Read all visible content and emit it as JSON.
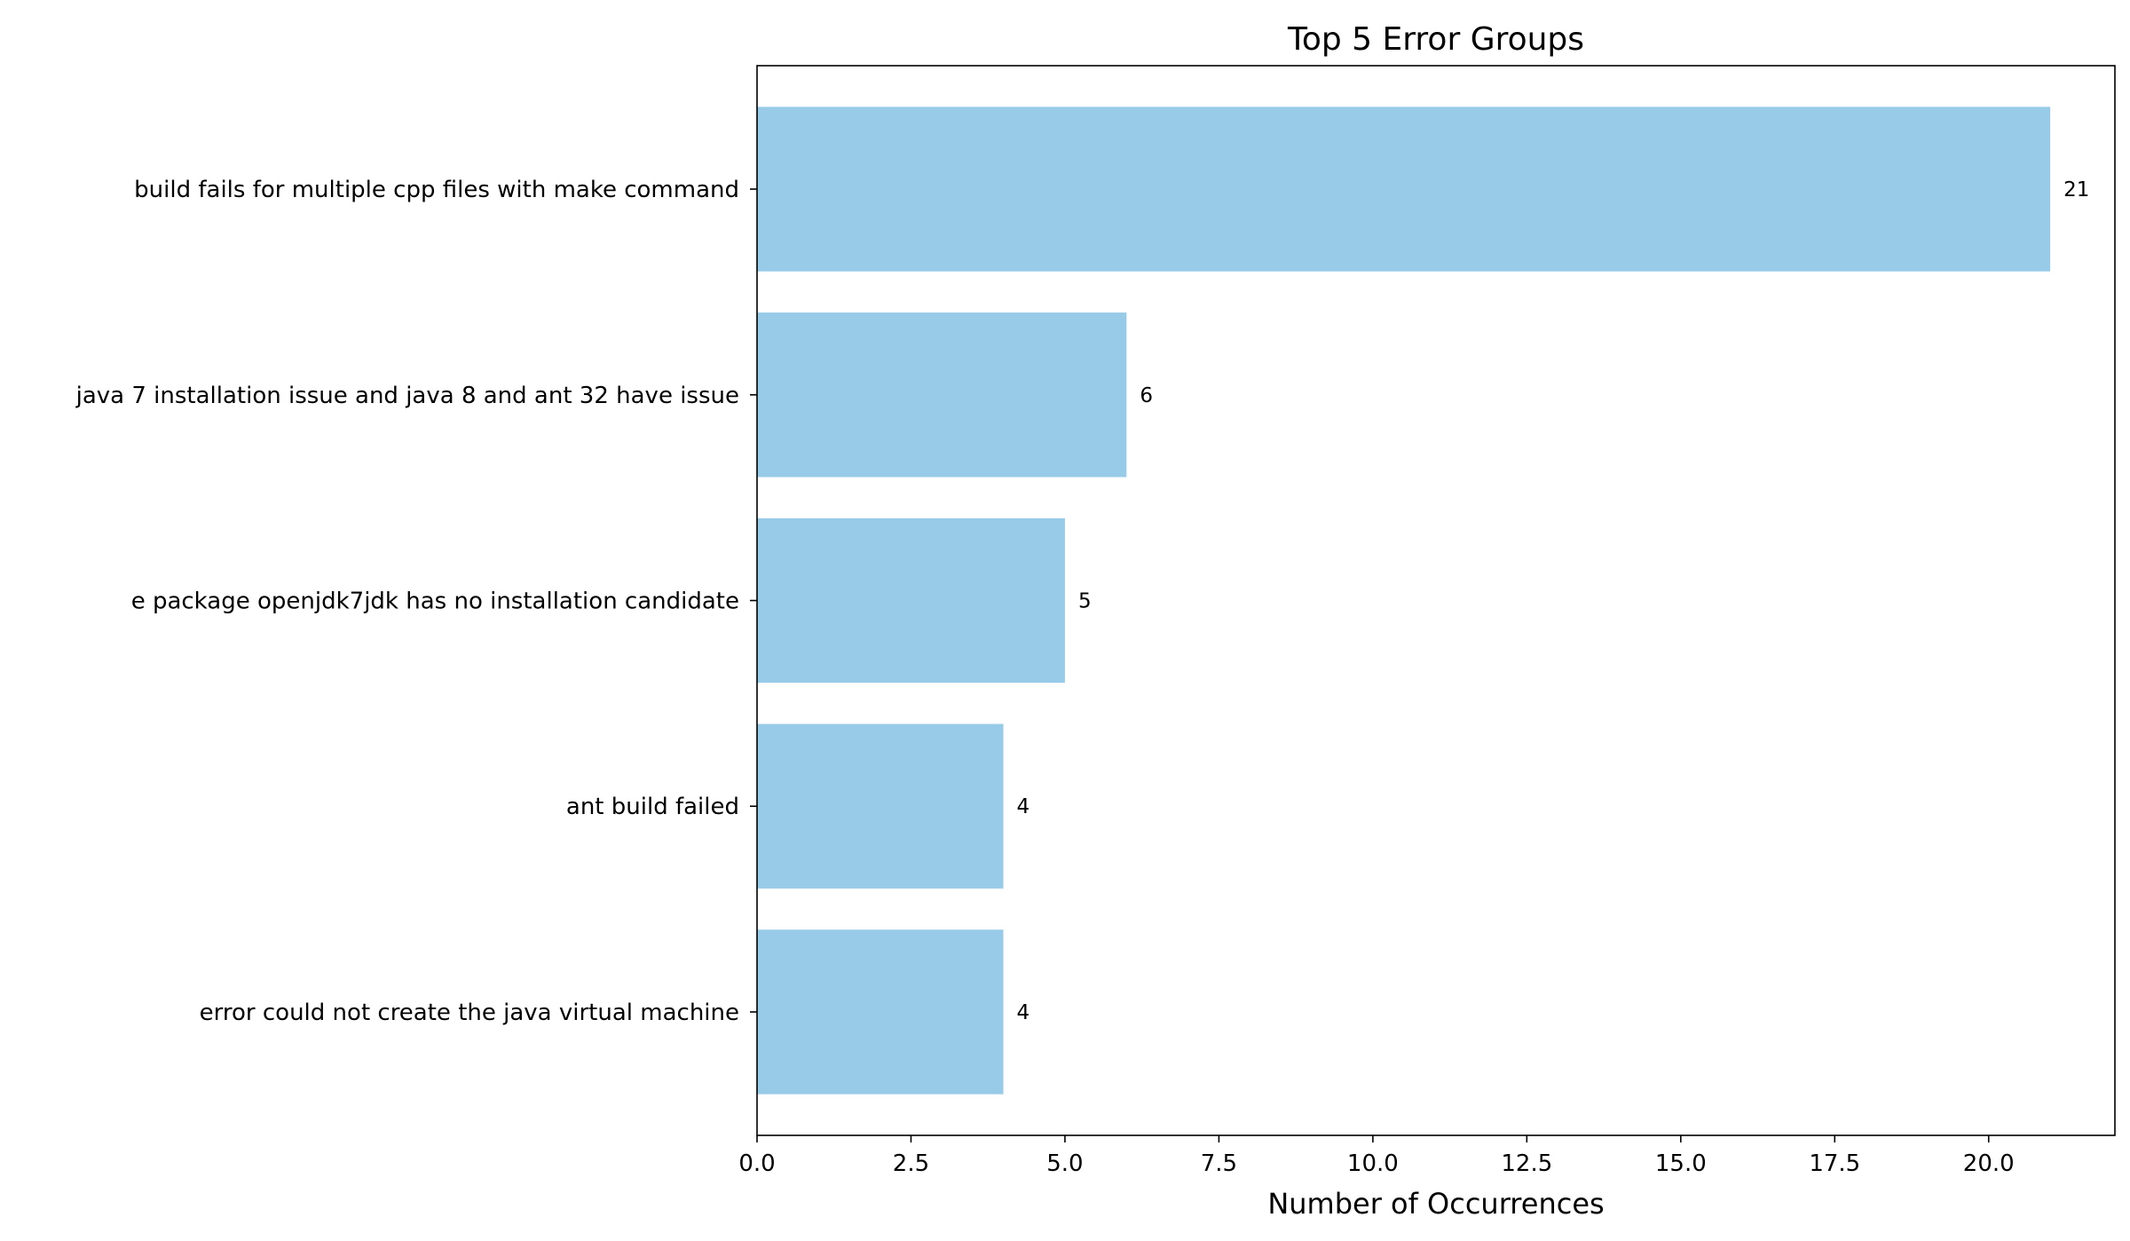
{
  "chart_data": {
    "type": "bar",
    "orientation": "horizontal",
    "title": "Top 5 Error Groups",
    "xlabel": "Number of Occurrences",
    "ylabel": "",
    "categories": [
      "build fails for multiple cpp files with make command",
      "java 7 installation issue and java 8 and ant 32 have issue",
      "e package openjdk7jdk has no installation candidate",
      "ant build failed",
      "error could not create the java virtual machine"
    ],
    "values": [
      21,
      6,
      5,
      4,
      4
    ],
    "value_labels": [
      "21",
      "6",
      "5",
      "4",
      "4"
    ],
    "xlim": [
      0,
      22.05
    ],
    "xticks": [
      0,
      2.5,
      5,
      7.5,
      10,
      12.5,
      15,
      17.5,
      20
    ],
    "xtick_labels": [
      "0.0",
      "2.5",
      "5.0",
      "7.5",
      "10.0",
      "12.5",
      "15.0",
      "17.5",
      "20.0"
    ],
    "grid": false,
    "legend": "none",
    "bar_color": "#97CBE7"
  }
}
